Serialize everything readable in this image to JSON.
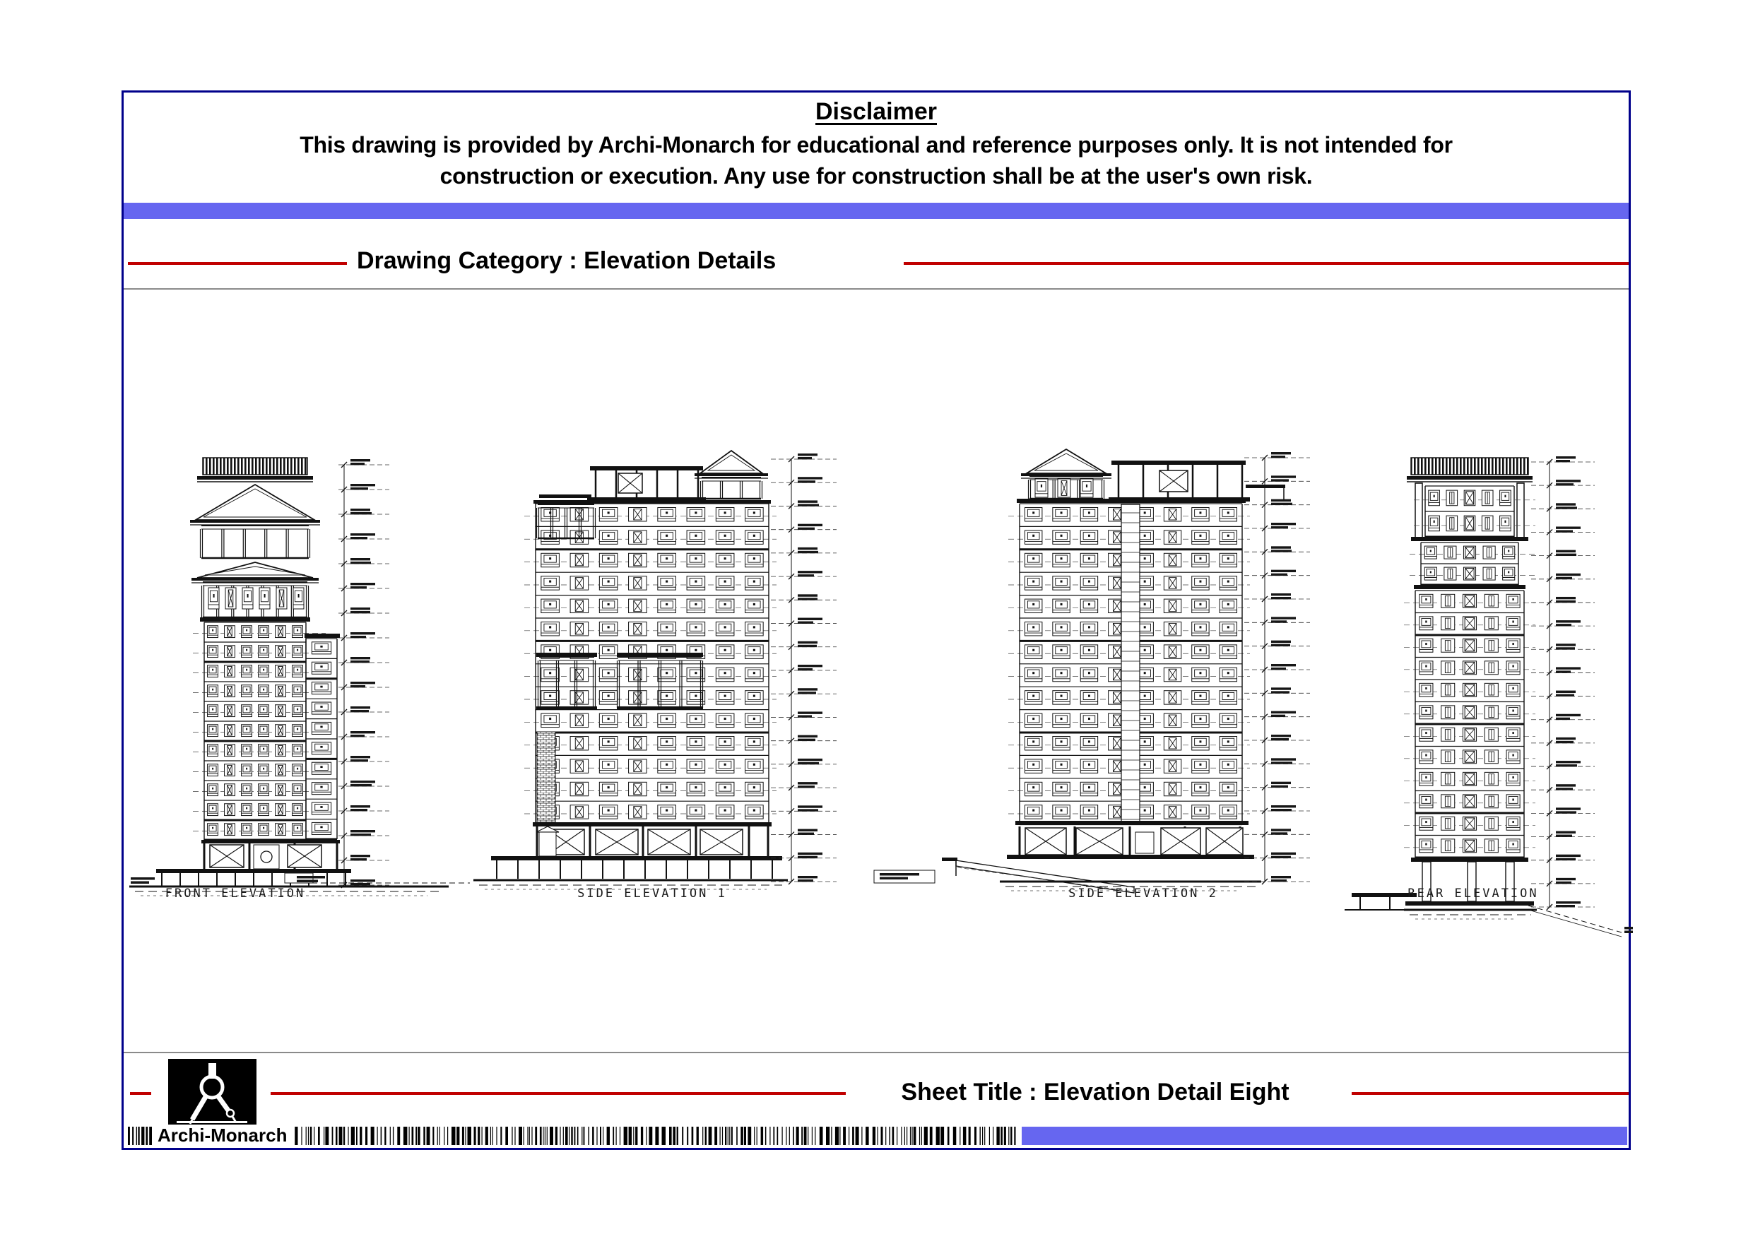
{
  "colors": {
    "accent_bar": "#6666F0",
    "border": "#00008B",
    "rule_red": "#C00000",
    "rule_gray": "#8A8A8A",
    "ink": "#111111"
  },
  "disclaimer": {
    "title": "Disclaimer",
    "line1": "This drawing is provided by Archi-Monarch for educational and reference purposes only. It is not intended for",
    "line2": "construction or execution. Any use for construction shall be at the user's own risk."
  },
  "category_label": "Drawing Category : Elevation Details",
  "sheet_title_label": "Sheet Title : Elevation Detail Eight",
  "brand_name": "Archi-Monarch",
  "elevations": [
    {
      "label": "FRONT ELEVATION",
      "floors": 11,
      "bay_pattern": [
        "plain",
        "x",
        "plain",
        "plain",
        "x",
        "plain"
      ],
      "level_marks": 17,
      "crown": "double-pediment",
      "base": "xbrace-door"
    },
    {
      "label": "SIDE ELEVATION 1",
      "floors": 14,
      "bay_pattern": [
        "plain",
        "x",
        "plain",
        "x",
        "plain",
        "plain",
        "plain",
        "plain"
      ],
      "level_marks": 18,
      "crown": "penthouse-right-pediment",
      "base": "xbrace-wide"
    },
    {
      "label": "SIDE ELEVATION 2",
      "floors": 14,
      "bay_pattern": [
        "plain",
        "plain",
        "plain",
        "x",
        "plain",
        "x",
        "plain",
        "plain"
      ],
      "level_marks": 18,
      "crown": "penthouse-left-pediment",
      "base": "xbrace-ramp"
    },
    {
      "label": "REAR ELEVATION",
      "floors": 12,
      "bay_pattern": [
        "plain",
        "narrow",
        "x-box",
        "narrow",
        "plain"
      ],
      "level_marks": 19,
      "crown": "hatch-cap",
      "base": "columns-canopy"
    }
  ]
}
